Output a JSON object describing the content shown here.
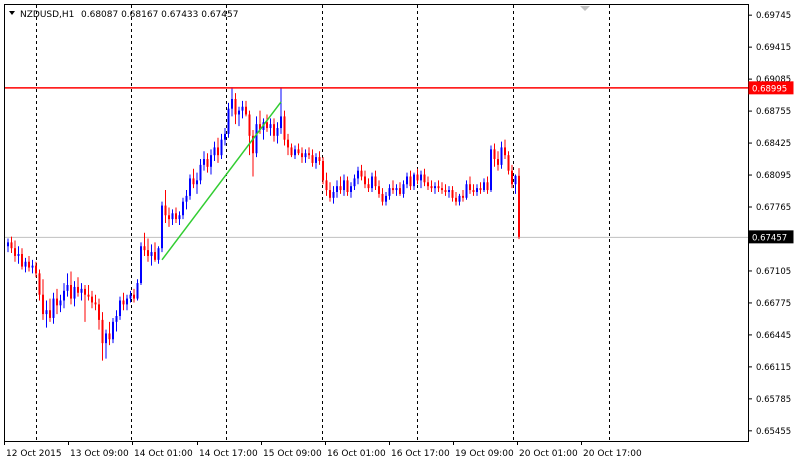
{
  "header": {
    "symbol": "NZDUSD,H1",
    "ohlc": "0.68087 0.68167 0.67433 0.67457",
    "menu_icon": "triangle-down-icon"
  },
  "colors": {
    "background": "#ffffff",
    "frame": "#000000",
    "grid": "#000000",
    "bull": "#0000ff",
    "bear": "#ff0000",
    "resistance_line": "#ff0000",
    "trend_line": "#32cd32",
    "price_line": "#c0c0c0",
    "price_label_bg": "#000000",
    "price_label_fg": "#ffffff"
  },
  "chart_data": {
    "type": "candlestick",
    "timeframe": "H1",
    "ylim": [
      0.6535,
      0.6985
    ],
    "y_ticks": [
      "0.69745",
      "0.69415",
      "0.69085",
      "0.68755",
      "0.68425",
      "0.68095",
      "0.67765",
      "0.67435",
      "0.67105",
      "0.66775",
      "0.66445",
      "0.66115",
      "0.65785",
      "0.65455"
    ],
    "x_ticks": [
      "12 Oct 2015",
      "13 Oct 09:00",
      "14 Oct 01:00",
      "14 Oct 17:00",
      "15 Oct 09:00",
      "16 Oct 01:00",
      "16 Oct 17:00",
      "19 Oct 09:00",
      "20 Oct 01:00",
      "20 Oct 17:00"
    ],
    "grid": "vertical-dashed",
    "resistance_level": {
      "value": 0.68995,
      "label": "0.68995"
    },
    "current_price": {
      "value": 0.67457,
      "label": "0.67457"
    },
    "trend_line": {
      "from": {
        "bar": 44,
        "price": 0.6722
      },
      "to": {
        "bar": 78,
        "price": 0.6885
      }
    },
    "candles": [
      [
        0.6736,
        0.6744,
        0.673,
        0.674
      ],
      [
        0.674,
        0.6746,
        0.6729,
        0.6734
      ],
      [
        0.6734,
        0.6742,
        0.672,
        0.6726
      ],
      [
        0.6726,
        0.6736,
        0.6718,
        0.6728
      ],
      [
        0.6728,
        0.6734,
        0.6712,
        0.6715
      ],
      [
        0.6715,
        0.6724,
        0.6709,
        0.672
      ],
      [
        0.672,
        0.6726,
        0.671,
        0.6714
      ],
      [
        0.6714,
        0.6722,
        0.6708,
        0.6716
      ],
      [
        0.6716,
        0.672,
        0.6704,
        0.6708
      ],
      [
        0.6708,
        0.6712,
        0.668,
        0.6686
      ],
      [
        0.6686,
        0.6702,
        0.666,
        0.6666
      ],
      [
        0.6666,
        0.668,
        0.6652,
        0.667
      ],
      [
        0.667,
        0.6682,
        0.6658,
        0.6662
      ],
      [
        0.6662,
        0.6688,
        0.6656,
        0.6682
      ],
      [
        0.6682,
        0.6692,
        0.6666,
        0.6675
      ],
      [
        0.6675,
        0.6686,
        0.6668,
        0.668
      ],
      [
        0.668,
        0.6698,
        0.6672,
        0.669
      ],
      [
        0.669,
        0.6708,
        0.6684,
        0.6696
      ],
      [
        0.6696,
        0.671,
        0.6676,
        0.6682
      ],
      [
        0.6682,
        0.67,
        0.6674,
        0.6694
      ],
      [
        0.6694,
        0.6704,
        0.6684,
        0.6688
      ],
      [
        0.6688,
        0.6698,
        0.668,
        0.6692
      ],
      [
        0.6692,
        0.6696,
        0.6658,
        0.6686
      ],
      [
        0.6686,
        0.6696,
        0.668,
        0.6684
      ],
      [
        0.6684,
        0.669,
        0.6672,
        0.6678
      ],
      [
        0.6678,
        0.6686,
        0.667,
        0.6676
      ],
      [
        0.6676,
        0.6682,
        0.665,
        0.666
      ],
      [
        0.666,
        0.6668,
        0.6618,
        0.6636
      ],
      [
        0.6636,
        0.665,
        0.662,
        0.6646
      ],
      [
        0.6646,
        0.6658,
        0.6634,
        0.664
      ],
      [
        0.664,
        0.6662,
        0.6636,
        0.6658
      ],
      [
        0.6658,
        0.667,
        0.6648,
        0.6664
      ],
      [
        0.6664,
        0.6684,
        0.666,
        0.668
      ],
      [
        0.668,
        0.6688,
        0.667,
        0.6676
      ],
      [
        0.6676,
        0.6686,
        0.667,
        0.6682
      ],
      [
        0.6682,
        0.669,
        0.6678,
        0.6686
      ],
      [
        0.6686,
        0.6692,
        0.6678,
        0.6682
      ],
      [
        0.6682,
        0.6702,
        0.668,
        0.6698
      ],
      [
        0.6698,
        0.674,
        0.6696,
        0.6736
      ],
      [
        0.6736,
        0.675,
        0.6726,
        0.6732
      ],
      [
        0.6732,
        0.6744,
        0.672,
        0.6726
      ],
      [
        0.6726,
        0.6738,
        0.6716,
        0.673
      ],
      [
        0.673,
        0.674,
        0.672,
        0.6722
      ],
      [
        0.6722,
        0.6736,
        0.6718,
        0.6734
      ],
      [
        0.6734,
        0.6782,
        0.673,
        0.6778
      ],
      [
        0.6778,
        0.6794,
        0.676,
        0.6768
      ],
      [
        0.6768,
        0.6776,
        0.6756,
        0.6764
      ],
      [
        0.6764,
        0.6774,
        0.6758,
        0.677
      ],
      [
        0.677,
        0.6776,
        0.676,
        0.6764
      ],
      [
        0.6764,
        0.6772,
        0.6758,
        0.6768
      ],
      [
        0.6768,
        0.6786,
        0.6764,
        0.6782
      ],
      [
        0.6782,
        0.6794,
        0.6774,
        0.6788
      ],
      [
        0.6788,
        0.681,
        0.6784,
        0.6806
      ],
      [
        0.6806,
        0.6816,
        0.6796,
        0.68
      ],
      [
        0.68,
        0.6812,
        0.679,
        0.6804
      ],
      [
        0.6804,
        0.6826,
        0.68,
        0.682
      ],
      [
        0.682,
        0.6834,
        0.6814,
        0.6826
      ],
      [
        0.6826,
        0.6832,
        0.6812,
        0.6818
      ],
      [
        0.6818,
        0.6836,
        0.681,
        0.683
      ],
      [
        0.683,
        0.6844,
        0.6824,
        0.6838
      ],
      [
        0.6838,
        0.6848,
        0.6822,
        0.683
      ],
      [
        0.683,
        0.6852,
        0.6826,
        0.6846
      ],
      [
        0.6846,
        0.6858,
        0.684,
        0.6852
      ],
      [
        0.6852,
        0.6884,
        0.6848,
        0.6878
      ],
      [
        0.6878,
        0.69,
        0.687,
        0.6888
      ],
      [
        0.6888,
        0.6894,
        0.6862,
        0.6872
      ],
      [
        0.6872,
        0.688,
        0.686,
        0.6876
      ],
      [
        0.6876,
        0.6886,
        0.6868,
        0.688
      ],
      [
        0.688,
        0.6886,
        0.687,
        0.6872
      ],
      [
        0.6872,
        0.6876,
        0.683,
        0.685
      ],
      [
        0.685,
        0.6856,
        0.6808,
        0.6832
      ],
      [
        0.6832,
        0.687,
        0.6828,
        0.6862
      ],
      [
        0.6862,
        0.6876,
        0.6852,
        0.6856
      ],
      [
        0.6856,
        0.6868,
        0.6846,
        0.6864
      ],
      [
        0.6864,
        0.6872,
        0.6854,
        0.6858
      ],
      [
        0.6858,
        0.6868,
        0.685,
        0.6862
      ],
      [
        0.6862,
        0.6868,
        0.6844,
        0.685
      ],
      [
        0.685,
        0.6864,
        0.6842,
        0.6858
      ],
      [
        0.6858,
        0.69,
        0.6852,
        0.687
      ],
      [
        0.687,
        0.6876,
        0.684,
        0.6846
      ],
      [
        0.6846,
        0.6852,
        0.683,
        0.6838
      ],
      [
        0.6838,
        0.6842,
        0.6828,
        0.683
      ],
      [
        0.683,
        0.684,
        0.6826,
        0.6836
      ],
      [
        0.6836,
        0.6842,
        0.683,
        0.6832
      ],
      [
        0.6832,
        0.6838,
        0.6822,
        0.6828
      ],
      [
        0.6828,
        0.6836,
        0.6822,
        0.6832
      ],
      [
        0.6832,
        0.6838,
        0.6826,
        0.683
      ],
      [
        0.683,
        0.6836,
        0.6818,
        0.6822
      ],
      [
        0.6822,
        0.6832,
        0.6816,
        0.6828
      ],
      [
        0.6828,
        0.6834,
        0.682,
        0.6824
      ],
      [
        0.6824,
        0.6828,
        0.68,
        0.6804
      ],
      [
        0.6804,
        0.6812,
        0.6788,
        0.6794
      ],
      [
        0.6794,
        0.6802,
        0.6782,
        0.6786
      ],
      [
        0.6786,
        0.6798,
        0.678,
        0.6792
      ],
      [
        0.6792,
        0.6804,
        0.6786,
        0.6798
      ],
      [
        0.6798,
        0.6808,
        0.679,
        0.6794
      ],
      [
        0.6794,
        0.681,
        0.6788,
        0.6804
      ],
      [
        0.6804,
        0.6808,
        0.6788,
        0.6792
      ],
      [
        0.6792,
        0.6802,
        0.6786,
        0.6798
      ],
      [
        0.6798,
        0.681,
        0.6794,
        0.6806
      ],
      [
        0.6806,
        0.6818,
        0.68,
        0.6814
      ],
      [
        0.6814,
        0.682,
        0.6804,
        0.6808
      ],
      [
        0.6808,
        0.6814,
        0.6796,
        0.68
      ],
      [
        0.68,
        0.6806,
        0.6792,
        0.6796
      ],
      [
        0.6796,
        0.6812,
        0.6792,
        0.6808
      ],
      [
        0.6808,
        0.6814,
        0.6794,
        0.6798
      ],
      [
        0.6798,
        0.6804,
        0.6786,
        0.679
      ],
      [
        0.679,
        0.6796,
        0.6778,
        0.6782
      ],
      [
        0.6782,
        0.6792,
        0.6778,
        0.6788
      ],
      [
        0.6788,
        0.68,
        0.6784,
        0.6796
      ],
      [
        0.6796,
        0.6804,
        0.679,
        0.6794
      ],
      [
        0.6794,
        0.68,
        0.6788,
        0.6796
      ],
      [
        0.6796,
        0.6802,
        0.6788,
        0.679
      ],
      [
        0.679,
        0.6804,
        0.6786,
        0.68
      ],
      [
        0.68,
        0.6812,
        0.6796,
        0.6808
      ],
      [
        0.6808,
        0.6814,
        0.6794,
        0.6798
      ],
      [
        0.6798,
        0.6812,
        0.6794,
        0.681
      ],
      [
        0.681,
        0.6816,
        0.68,
        0.6804
      ],
      [
        0.6804,
        0.6814,
        0.6796,
        0.681
      ],
      [
        0.681,
        0.6816,
        0.6798,
        0.6802
      ],
      [
        0.6802,
        0.6808,
        0.6794,
        0.6798
      ],
      [
        0.6798,
        0.6804,
        0.6792,
        0.6796
      ],
      [
        0.6796,
        0.6802,
        0.679,
        0.6798
      ],
      [
        0.6798,
        0.6804,
        0.6792,
        0.6796
      ],
      [
        0.6796,
        0.6802,
        0.679,
        0.6794
      ],
      [
        0.6794,
        0.68,
        0.6788,
        0.6792
      ],
      [
        0.6792,
        0.6798,
        0.6786,
        0.6794
      ],
      [
        0.6794,
        0.6798,
        0.6782,
        0.6786
      ],
      [
        0.6786,
        0.6792,
        0.6778,
        0.6782
      ],
      [
        0.6782,
        0.679,
        0.6778,
        0.6788
      ],
      [
        0.6788,
        0.6794,
        0.6782,
        0.6786
      ],
      [
        0.6786,
        0.6804,
        0.6784,
        0.68
      ],
      [
        0.68,
        0.6808,
        0.679,
        0.6794
      ],
      [
        0.6794,
        0.68,
        0.6788,
        0.6792
      ],
      [
        0.6792,
        0.68,
        0.6788,
        0.6796
      ],
      [
        0.6796,
        0.6802,
        0.679,
        0.6794
      ],
      [
        0.6794,
        0.6806,
        0.6792,
        0.6802
      ],
      [
        0.6802,
        0.6808,
        0.679,
        0.6794
      ],
      [
        0.6794,
        0.684,
        0.6792,
        0.6836
      ],
      [
        0.6836,
        0.6842,
        0.6818,
        0.6826
      ],
      [
        0.6826,
        0.6834,
        0.6814,
        0.682
      ],
      [
        0.682,
        0.6844,
        0.6816,
        0.6838
      ],
      [
        0.6838,
        0.6846,
        0.6826,
        0.683
      ],
      [
        0.683,
        0.6834,
        0.681,
        0.6814
      ],
      [
        0.6814,
        0.682,
        0.6796,
        0.68
      ],
      [
        0.68,
        0.681,
        0.679,
        0.68087
      ],
      [
        0.68087,
        0.68167,
        0.67433,
        0.67457
      ]
    ]
  }
}
